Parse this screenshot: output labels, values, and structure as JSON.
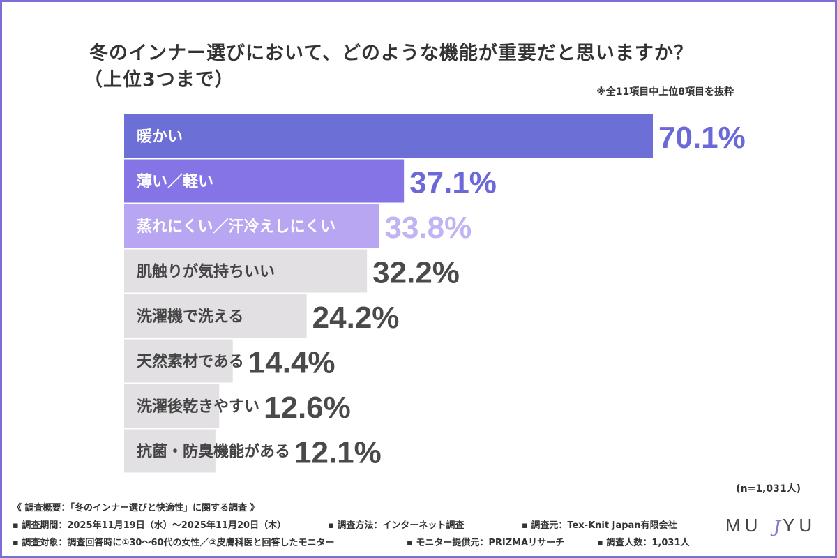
{
  "title_line1": "冬のインナー選びにおいて、どのような機能が重要だと思いますか？",
  "title_line2": "（上位3つまで）",
  "note": "※全11項目中上位8項目を抜粋",
  "n_note": "(n=1,031人)",
  "footer": {
    "heading": "《 調査概要：「冬のインナー選びと快適性」に関する調査 》",
    "period": "調査期間：2025年11月19日（水）〜2025年11月20日（木）",
    "method": "調査方法：インターネット調査",
    "source": "調査元：Tex-Knit Japan有限会社",
    "target": "調査対象：調査回答時に①30〜60代の女性／②皮膚科医と回答したモニター",
    "provider": "モニター提供元：PRIZMAリサーチ",
    "count": "調査人数：1,031人"
  },
  "logo": {
    "left": "MU",
    "right": "YU",
    "mark": "J"
  },
  "colors": {
    "frame": "#7a6fd6",
    "bar1": "#6b6fd6",
    "bar2": "#8474e6",
    "bar3": "#b9a6f3",
    "bar_gray": "#e3e0e4",
    "label_purple": "#6b68d8",
    "label_purple_light": "#c2b4f2",
    "label_gray": "#4a4a4a"
  },
  "chart_data": {
    "type": "bar",
    "orientation": "horizontal",
    "categories": [
      "暖かい",
      "薄い／軽い",
      "蒸れにくい／汗冷えしにくい",
      "肌触りが気持ちいい",
      "洗濯機で洗える",
      "天然素材である",
      "洗濯後乾きやすい",
      "抗菌・防臭機能がある"
    ],
    "values": [
      70.1,
      37.1,
      33.8,
      32.2,
      24.2,
      14.4,
      12.6,
      12.1
    ],
    "value_labels": [
      "70.1%",
      "37.1%",
      "33.8%",
      "32.2%",
      "24.2%",
      "14.4%",
      "12.6%",
      "12.1%"
    ],
    "unit": "%"
  }
}
